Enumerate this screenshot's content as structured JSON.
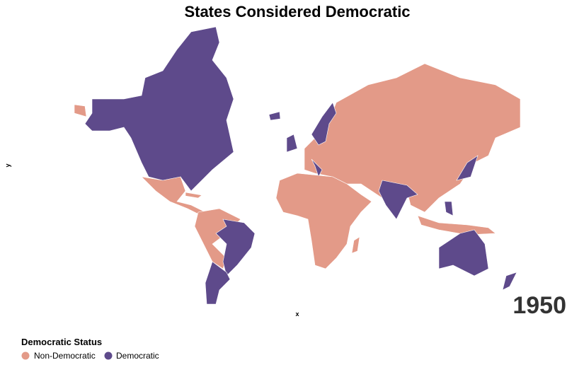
{
  "header": {
    "title": "States Considered Democratic"
  },
  "axes": {
    "x_label": "x",
    "y_label": "y"
  },
  "legend": {
    "title": "Democratic Status",
    "items": [
      {
        "label": "Non-Democratic",
        "color": "#e39a88"
      },
      {
        "label": "Democratic",
        "color": "#5e4a8b"
      }
    ]
  },
  "year": "1950"
}
